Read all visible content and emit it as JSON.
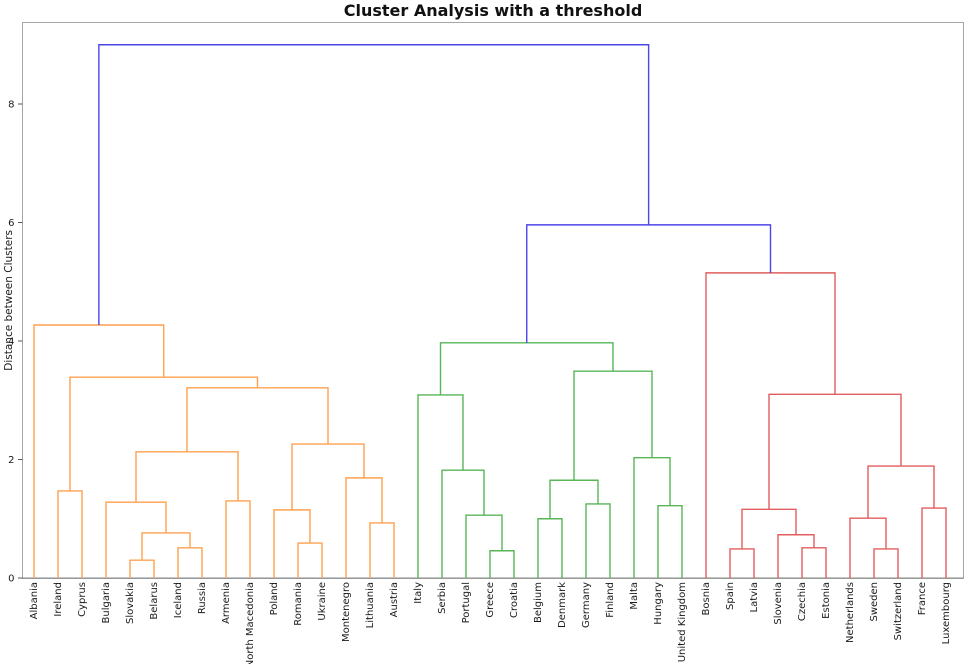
{
  "title": "Cluster Analysis with a threshold",
  "ylabel": "Distance between Clusters",
  "colors": {
    "orange": "#ffa150",
    "green": "#57b657",
    "red": "#e25d5d",
    "blue": "#4a46ea",
    "spine": "#a6a6a6",
    "baseline": "#8c8c8c",
    "text": "#1a1a1a"
  },
  "chart_data": {
    "type": "dendrogram",
    "title": "Cluster Analysis with a threshold",
    "ylabel": "Distance between Clusters",
    "xlabel": "",
    "grid": false,
    "legend": "none",
    "ylim": [
      0,
      9.4
    ],
    "yticks": [
      0,
      2,
      4,
      6,
      8
    ],
    "leaves": [
      "Albania",
      "Ireland",
      "Cyprus",
      "Bulgaria",
      "Slovakia",
      "Belarus",
      "Iceland",
      "Russia",
      "Armenia",
      "North Macedonia",
      "Poland",
      "Romania",
      "Ukraine",
      "Montenegro",
      "Lithuania",
      "Austria",
      "Italy",
      "Serbia",
      "Portugal",
      "Greece",
      "Croatia",
      "Belgium",
      "Denmark",
      "Germany",
      "Finland",
      "Malta",
      "Hungary",
      "United Kingdom",
      "Bosnia",
      "Spain",
      "Latvia",
      "Slovenia",
      "Czechia",
      "Estonia",
      "Netherlands",
      "Sweden",
      "Switzerland",
      "France",
      "Luxembourg"
    ],
    "merges": [
      {
        "id": "O1",
        "left": "Slovakia",
        "right": "Belarus",
        "h": 0.3,
        "c": "orange"
      },
      {
        "id": "O2",
        "left": "Iceland",
        "right": "Russia",
        "h": 0.51,
        "c": "orange"
      },
      {
        "id": "O3",
        "left": "O1",
        "right": "O2",
        "h": 0.76,
        "c": "orange"
      },
      {
        "id": "O4",
        "left": "Bulgaria",
        "right": "O3",
        "h": 1.28,
        "c": "orange"
      },
      {
        "id": "O5",
        "left": "Armenia",
        "right": "North Macedonia",
        "h": 1.3,
        "c": "orange"
      },
      {
        "id": "O6",
        "left": "O4",
        "right": "O5",
        "h": 2.13,
        "c": "orange"
      },
      {
        "id": "O7",
        "left": "Romania",
        "right": "Ukraine",
        "h": 0.59,
        "c": "orange"
      },
      {
        "id": "O8",
        "left": "Poland",
        "right": "O7",
        "h": 1.15,
        "c": "orange"
      },
      {
        "id": "O9",
        "left": "Lithuania",
        "right": "Austria",
        "h": 0.93,
        "c": "orange"
      },
      {
        "id": "O10",
        "left": "Montenegro",
        "right": "O9",
        "h": 1.69,
        "c": "orange"
      },
      {
        "id": "O11",
        "left": "O8",
        "right": "O10",
        "h": 2.26,
        "c": "orange"
      },
      {
        "id": "O12",
        "left": "O6",
        "right": "O11",
        "h": 3.21,
        "c": "orange"
      },
      {
        "id": "O13",
        "left": "Ireland",
        "right": "Cyprus",
        "h": 1.47,
        "c": "orange"
      },
      {
        "id": "O14",
        "left": "O13",
        "right": "O12",
        "h": 3.39,
        "c": "orange"
      },
      {
        "id": "O15",
        "left": "Albania",
        "right": "O14",
        "h": 4.27,
        "c": "orange"
      },
      {
        "id": "G1",
        "left": "Greece",
        "right": "Croatia",
        "h": 0.46,
        "c": "green"
      },
      {
        "id": "G2",
        "left": "Portugal",
        "right": "G1",
        "h": 1.06,
        "c": "green"
      },
      {
        "id": "G3",
        "left": "Serbia",
        "right": "G2",
        "h": 1.82,
        "c": "green"
      },
      {
        "id": "G4",
        "left": "Italy",
        "right": "G3",
        "h": 3.09,
        "c": "green"
      },
      {
        "id": "G5",
        "left": "Belgium",
        "right": "Denmark",
        "h": 1.0,
        "c": "green"
      },
      {
        "id": "G6",
        "left": "Germany",
        "right": "Finland",
        "h": 1.25,
        "c": "green"
      },
      {
        "id": "G7",
        "left": "G5",
        "right": "G6",
        "h": 1.65,
        "c": "green"
      },
      {
        "id": "G8",
        "left": "Hungary",
        "right": "United Kingdom",
        "h": 1.22,
        "c": "green"
      },
      {
        "id": "G9",
        "left": "Malta",
        "right": "G8",
        "h": 2.03,
        "c": "green"
      },
      {
        "id": "G10",
        "left": "G7",
        "right": "G9",
        "h": 3.49,
        "c": "green"
      },
      {
        "id": "G11",
        "left": "G4",
        "right": "G10",
        "h": 3.97,
        "c": "green"
      },
      {
        "id": "R1",
        "left": "Spain",
        "right": "Latvia",
        "h": 0.49,
        "c": "red"
      },
      {
        "id": "R2",
        "left": "Czechia",
        "right": "Estonia",
        "h": 0.51,
        "c": "red"
      },
      {
        "id": "R3",
        "left": "Slovenia",
        "right": "R2",
        "h": 0.73,
        "c": "red"
      },
      {
        "id": "R4",
        "left": "R1",
        "right": "R3",
        "h": 1.16,
        "c": "red"
      },
      {
        "id": "R5",
        "left": "Sweden",
        "right": "Switzerland",
        "h": 0.49,
        "c": "red"
      },
      {
        "id": "R6",
        "left": "Netherlands",
        "right": "R5",
        "h": 1.01,
        "c": "red"
      },
      {
        "id": "R7",
        "left": "France",
        "right": "Luxembourg",
        "h": 1.18,
        "c": "red"
      },
      {
        "id": "R8",
        "left": "R6",
        "right": "R7",
        "h": 1.89,
        "c": "red"
      },
      {
        "id": "R9",
        "left": "R4",
        "right": "R8",
        "h": 3.1,
        "c": "red"
      },
      {
        "id": "R10",
        "left": "Bosnia",
        "right": "R9",
        "h": 5.15,
        "c": "red"
      },
      {
        "id": "B1",
        "left": "G11",
        "right": "R10",
        "h": 5.96,
        "c": "blue"
      },
      {
        "id": "B2",
        "left": "O15",
        "right": "B1",
        "h": 9.0,
        "c": "blue"
      }
    ]
  }
}
